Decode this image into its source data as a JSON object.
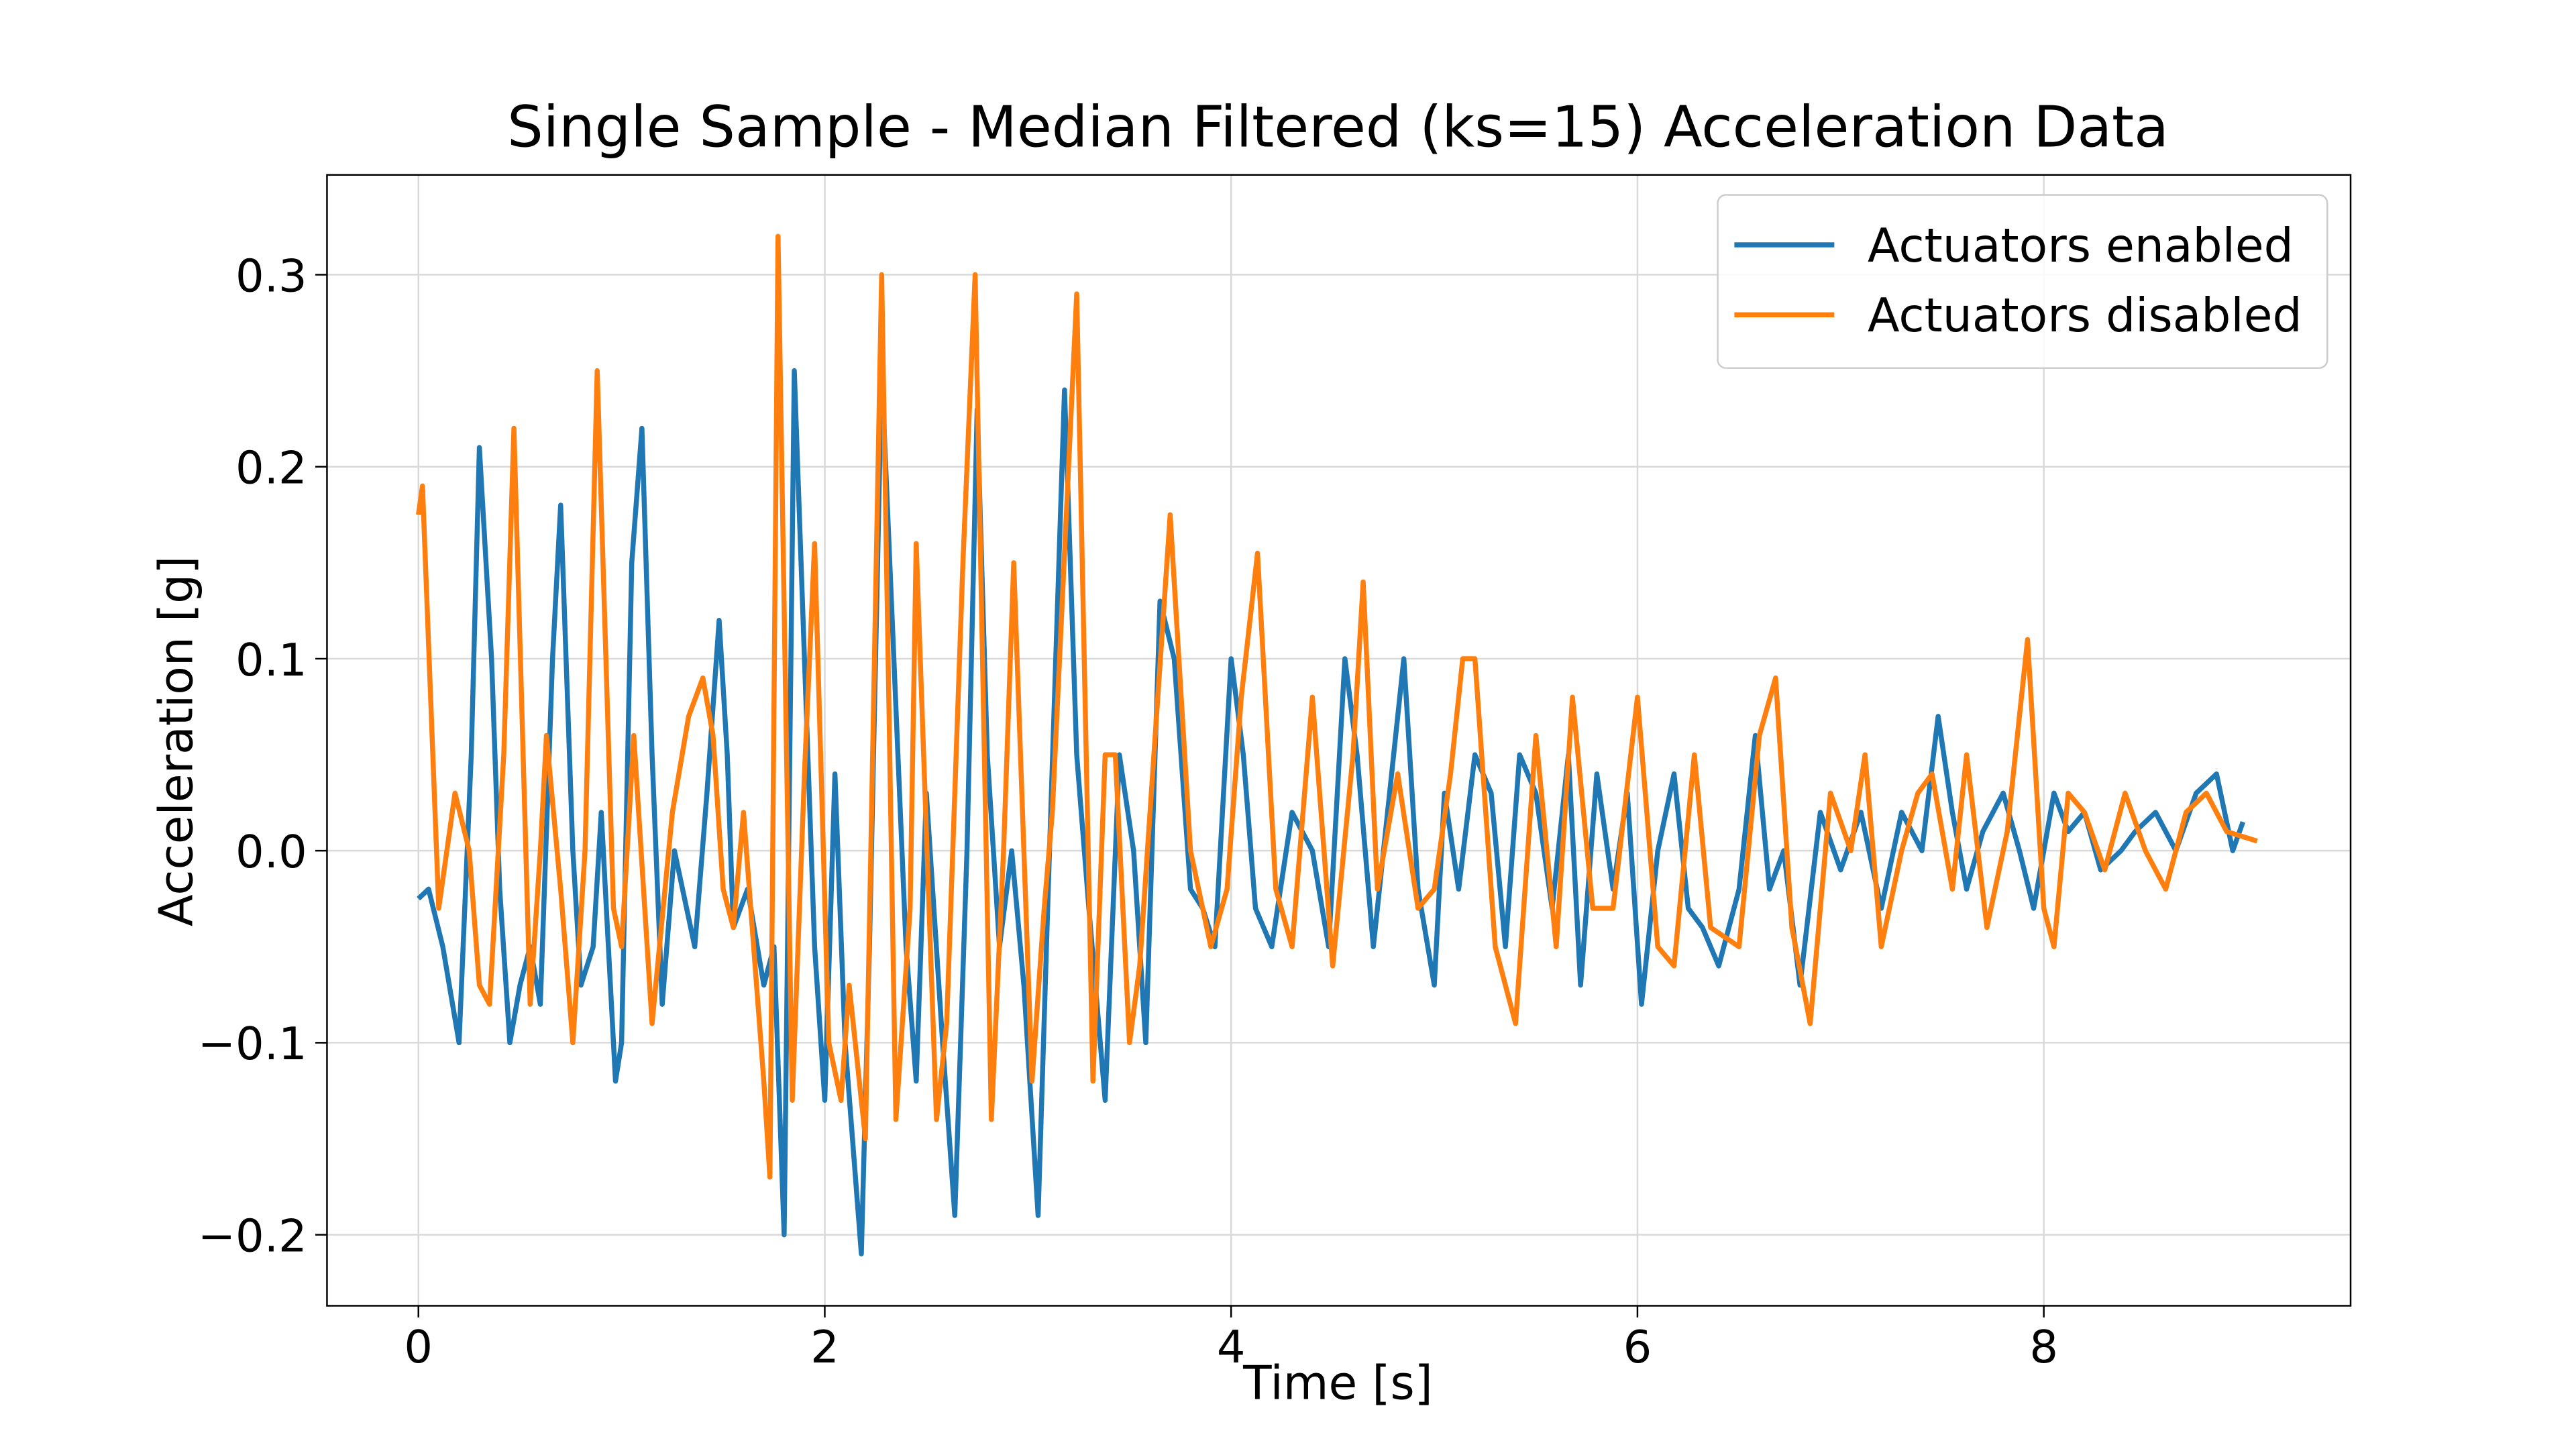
{
  "chart_data": {
    "type": "line",
    "title": "Single Sample - Median Filtered (ks=15) Acceleration Data",
    "x_label": "Time [s]",
    "y_label": "Acceleration [g]",
    "xlim": [
      -0.45,
      9.51
    ],
    "ylim": [
      -0.237,
      0.352
    ],
    "xticks": [
      0,
      2,
      4,
      6,
      8
    ],
    "yticks": [
      {
        "value": -0.2,
        "label": "−0.2"
      },
      {
        "value": -0.1,
        "label": "−0.1"
      },
      {
        "value": 0,
        "label": "0.0"
      },
      {
        "value": 0.1,
        "label": "0.1"
      },
      {
        "value": 0.2,
        "label": "0.2"
      },
      {
        "value": 0.3,
        "label": "0.3"
      }
    ],
    "grid": true,
    "legend": "upper right",
    "series": [
      {
        "name": "Actuators enabled",
        "color": "#1f77b4",
        "x": [
          0,
          0.05,
          0.12,
          0.2,
          0.26,
          0.3,
          0.36,
          0.4,
          0.45,
          0.5,
          0.55,
          0.6,
          0.66,
          0.7,
          0.76,
          0.8,
          0.86,
          0.9,
          0.97,
          1.0,
          1.05,
          1.1,
          1.15,
          1.2,
          1.26,
          1.3,
          1.36,
          1.42,
          1.48,
          1.52,
          1.55,
          1.62,
          1.7,
          1.75,
          1.8,
          1.85,
          1.9,
          1.95,
          2.0,
          2.05,
          2.1,
          2.18,
          2.22,
          2.28,
          2.34,
          2.4,
          2.45,
          2.5,
          2.58,
          2.64,
          2.7,
          2.75,
          2.8,
          2.86,
          2.92,
          2.98,
          3.05,
          3.1,
          3.18,
          3.24,
          3.3,
          3.38,
          3.45,
          3.52,
          3.58,
          3.65,
          3.72,
          3.8,
          3.86,
          3.92,
          4.0,
          4.06,
          4.12,
          4.2,
          4.3,
          4.4,
          4.48,
          4.56,
          4.62,
          4.7,
          4.78,
          4.85,
          4.92,
          5.0,
          5.05,
          5.12,
          5.2,
          5.28,
          5.35,
          5.42,
          5.5,
          5.58,
          5.66,
          5.72,
          5.8,
          5.88,
          5.95,
          6.02,
          6.1,
          6.18,
          6.25,
          6.32,
          6.4,
          6.5,
          6.58,
          6.65,
          6.72,
          6.8,
          6.9,
          7.0,
          7.1,
          7.2,
          7.3,
          7.4,
          7.48,
          7.55,
          7.62,
          7.7,
          7.8,
          7.88,
          7.95,
          8.05,
          8.12,
          8.2,
          8.28,
          8.38,
          8.45,
          8.55,
          8.65,
          8.75,
          8.85,
          8.93,
          8.98
        ],
        "values": [
          -0.025,
          -0.02,
          -0.05,
          -0.1,
          0.05,
          0.21,
          0.1,
          -0.02,
          -0.1,
          -0.07,
          -0.05,
          -0.08,
          0.1,
          0.18,
          0.0,
          -0.07,
          -0.05,
          0.02,
          -0.12,
          -0.1,
          0.15,
          0.22,
          0.05,
          -0.08,
          0.0,
          -0.02,
          -0.05,
          0.03,
          0.12,
          0.05,
          -0.04,
          -0.02,
          -0.07,
          -0.05,
          -0.2,
          0.25,
          0.1,
          -0.05,
          -0.13,
          0.04,
          -0.1,
          -0.21,
          -0.05,
          0.25,
          0.1,
          -0.05,
          -0.12,
          0.03,
          -0.1,
          -0.19,
          0.0,
          0.23,
          0.05,
          -0.05,
          0.0,
          -0.07,
          -0.19,
          -0.02,
          0.24,
          0.05,
          -0.03,
          -0.13,
          0.05,
          0.0,
          -0.1,
          0.13,
          0.1,
          -0.02,
          -0.03,
          -0.05,
          0.1,
          0.05,
          -0.03,
          -0.05,
          0.02,
          0.0,
          -0.05,
          0.1,
          0.05,
          -0.05,
          0.03,
          0.1,
          -0.02,
          -0.07,
          0.03,
          -0.02,
          0.05,
          0.03,
          -0.05,
          0.05,
          0.03,
          -0.03,
          0.05,
          -0.07,
          0.04,
          -0.02,
          0.03,
          -0.08,
          0.0,
          0.04,
          -0.03,
          -0.04,
          -0.06,
          -0.02,
          0.06,
          -0.02,
          0.0,
          -0.07,
          0.02,
          -0.01,
          0.02,
          -0.03,
          0.02,
          0.0,
          0.07,
          0.02,
          -0.02,
          0.01,
          0.03,
          0.0,
          -0.03,
          0.03,
          0.01,
          0.02,
          -0.01,
          0.0,
          0.01,
          0.02,
          0.0,
          0.03,
          0.04,
          0.0,
          0.015
        ]
      },
      {
        "name": "Actuators disabled",
        "color": "#ff7f0e",
        "x": [
          0,
          0.02,
          0.1,
          0.18,
          0.25,
          0.3,
          0.35,
          0.42,
          0.47,
          0.55,
          0.6,
          0.63,
          0.7,
          0.76,
          0.82,
          0.88,
          0.96,
          1.0,
          1.06,
          1.15,
          1.25,
          1.33,
          1.4,
          1.45,
          1.5,
          1.55,
          1.6,
          1.65,
          1.7,
          1.73,
          1.77,
          1.84,
          1.9,
          1.95,
          2.02,
          2.08,
          2.12,
          2.2,
          2.28,
          2.35,
          2.42,
          2.45,
          2.55,
          2.6,
          2.68,
          2.74,
          2.82,
          2.88,
          2.93,
          3.02,
          3.08,
          3.12,
          3.24,
          3.32,
          3.38,
          3.43,
          3.5,
          3.55,
          3.62,
          3.7,
          3.8,
          3.9,
          3.98,
          4.05,
          4.13,
          4.22,
          4.3,
          4.4,
          4.5,
          4.6,
          4.65,
          4.72,
          4.82,
          4.92,
          5.0,
          5.08,
          5.14,
          5.2,
          5.3,
          5.4,
          5.5,
          5.6,
          5.68,
          5.78,
          5.88,
          6.0,
          6.1,
          6.18,
          6.28,
          6.36,
          6.5,
          6.6,
          6.68,
          6.76,
          6.85,
          6.95,
          7.05,
          7.12,
          7.2,
          7.3,
          7.38,
          7.45,
          7.55,
          7.62,
          7.72,
          7.82,
          7.92,
          8.0,
          8.05,
          8.12,
          8.2,
          8.3,
          8.4,
          8.5,
          8.6,
          8.7,
          8.8,
          8.9,
          9.05
        ],
        "values": [
          0.175,
          0.19,
          -0.03,
          0.03,
          0.0,
          -0.07,
          -0.08,
          0.05,
          0.22,
          -0.08,
          0.0,
          0.06,
          -0.02,
          -0.1,
          0.0,
          0.25,
          -0.03,
          -0.05,
          0.06,
          -0.09,
          0.02,
          0.07,
          0.09,
          0.06,
          -0.02,
          -0.04,
          0.02,
          -0.05,
          -0.12,
          -0.17,
          0.32,
          -0.13,
          0.04,
          0.16,
          -0.1,
          -0.13,
          -0.07,
          -0.15,
          0.3,
          -0.14,
          -0.03,
          0.16,
          -0.14,
          -0.09,
          0.15,
          0.3,
          -0.14,
          0.0,
          0.15,
          -0.12,
          -0.03,
          0.02,
          0.29,
          -0.12,
          0.05,
          0.05,
          -0.1,
          -0.06,
          0.05,
          0.175,
          0.0,
          -0.05,
          -0.02,
          0.08,
          0.155,
          -0.02,
          -0.05,
          0.08,
          -0.06,
          0.05,
          0.14,
          -0.02,
          0.04,
          -0.03,
          -0.02,
          0.04,
          0.1,
          0.1,
          -0.05,
          -0.09,
          0.06,
          -0.05,
          0.08,
          -0.03,
          -0.03,
          0.08,
          -0.05,
          -0.06,
          0.05,
          -0.04,
          -0.05,
          0.06,
          0.09,
          -0.04,
          -0.09,
          0.03,
          0.0,
          0.05,
          -0.05,
          0.0,
          0.03,
          0.04,
          -0.02,
          0.05,
          -0.04,
          0.01,
          0.11,
          -0.03,
          -0.05,
          0.03,
          0.02,
          -0.01,
          0.03,
          0.0,
          -0.02,
          0.02,
          0.03,
          0.01,
          0.005
        ]
      }
    ]
  }
}
